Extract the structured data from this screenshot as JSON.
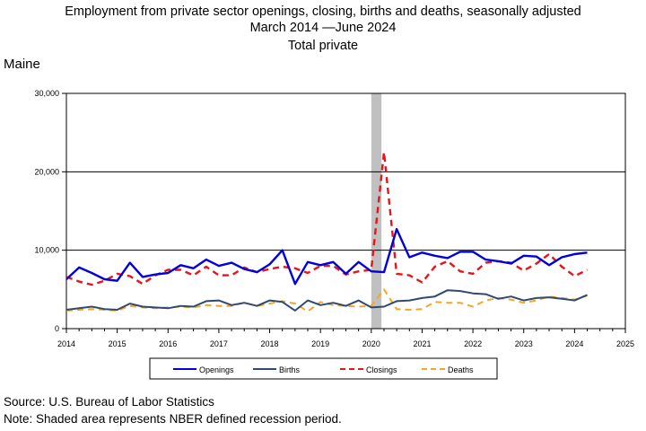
{
  "title": {
    "line1": "Employment from private sector openings, closing, births and deaths, seasonally adjusted",
    "line2": "March 2014 —June 2024",
    "line3": "Total private"
  },
  "state_label": "Maine",
  "footer": {
    "source": "Source: U.S. Bureau of Labor Statistics",
    "note": "Note: Shaded area represents NBER defined recession period."
  },
  "colors": {
    "openings": "#0000dd",
    "births": "#2e4a70",
    "closings": "#e8141b",
    "deaths": "#f5a623",
    "recession": "#c0c0c0"
  },
  "chart_data": {
    "type": "line",
    "ylim": [
      0,
      30000
    ],
    "xlim": [
      2014,
      2025
    ],
    "yticks": [
      {
        "value": 0,
        "label": "0"
      },
      {
        "value": 10000,
        "label": "10,000"
      },
      {
        "value": 20000,
        "label": "20,000"
      },
      {
        "value": 30000,
        "label": "30,000"
      }
    ],
    "xticks": [
      {
        "value": 2014,
        "label": "2014"
      },
      {
        "value": 2015,
        "label": "2015"
      },
      {
        "value": 2016,
        "label": "2016"
      },
      {
        "value": 2017,
        "label": "2017"
      },
      {
        "value": 2018,
        "label": "2018"
      },
      {
        "value": 2019,
        "label": "2019"
      },
      {
        "value": 2020,
        "label": "2020"
      },
      {
        "value": 2021,
        "label": "2021"
      },
      {
        "value": 2022,
        "label": "2022"
      },
      {
        "value": 2023,
        "label": "2023"
      },
      {
        "value": 2024,
        "label": "2024"
      },
      {
        "value": 2025,
        "label": "2025"
      }
    ],
    "horizontal_grid_at": [
      10000,
      20000
    ],
    "recession": {
      "start": 2020.0,
      "end": 2020.2
    },
    "legend_position": "bottom",
    "x": [
      2014.0,
      2014.25,
      2014.5,
      2014.75,
      2015.0,
      2015.25,
      2015.5,
      2015.75,
      2016.0,
      2016.25,
      2016.5,
      2016.75,
      2017.0,
      2017.25,
      2017.5,
      2017.75,
      2018.0,
      2018.25,
      2018.5,
      2018.75,
      2019.0,
      2019.25,
      2019.5,
      2019.75,
      2020.0,
      2020.25,
      2020.5,
      2020.75,
      2021.0,
      2021.25,
      2021.5,
      2021.75,
      2022.0,
      2022.25,
      2022.5,
      2022.75,
      2023.0,
      2023.25,
      2023.5,
      2023.75,
      2024.0,
      2024.25
    ],
    "series": [
      {
        "key": "openings",
        "name": "Openings",
        "style": "solid",
        "values": [
          6300,
          7800,
          7100,
          6300,
          6100,
          8400,
          6600,
          6900,
          7100,
          8100,
          7700,
          8800,
          8000,
          8400,
          7600,
          7200,
          8200,
          10000,
          5700,
          8500,
          8100,
          8500,
          7000,
          8500,
          7300,
          7200,
          12700,
          9100,
          9700,
          9300,
          9000,
          9800,
          9800,
          8800,
          8600,
          8300,
          9300,
          9200,
          8100,
          9100,
          9500,
          9700
        ]
      },
      {
        "key": "births",
        "name": "Births",
        "style": "solid",
        "values": [
          2400,
          2600,
          2800,
          2500,
          2400,
          3200,
          2800,
          2700,
          2600,
          2900,
          2800,
          3500,
          3600,
          3000,
          3300,
          2900,
          3600,
          3400,
          2300,
          3600,
          3000,
          3300,
          2900,
          3600,
          2700,
          2800,
          3500,
          3600,
          3900,
          4100,
          4900,
          4800,
          4500,
          4400,
          3800,
          4100,
          3600,
          3900,
          4000,
          3800,
          3600,
          4300
        ]
      },
      {
        "key": "closings",
        "name": "Closings",
        "style": "dashed",
        "values": [
          6600,
          6000,
          5600,
          6100,
          7000,
          6700,
          5700,
          6800,
          7500,
          7500,
          6800,
          7900,
          6800,
          6800,
          7800,
          7200,
          7600,
          7900,
          7700,
          7100,
          8000,
          8000,
          6900,
          7300,
          7500,
          22500,
          7000,
          6800,
          5900,
          7900,
          8600,
          7300,
          7000,
          8400,
          8600,
          8400,
          7400,
          8300,
          9500,
          7900,
          6700,
          7500
        ]
      },
      {
        "key": "deaths",
        "name": "Deaths",
        "style": "dashed",
        "values": [
          2300,
          2400,
          2500,
          2400,
          2300,
          2900,
          2700,
          2600,
          2700,
          2800,
          2700,
          3000,
          2900,
          2900,
          3300,
          2900,
          3200,
          3500,
          3200,
          2200,
          3400,
          3000,
          2900,
          2800,
          2900,
          5000,
          2500,
          2400,
          2500,
          3400,
          3300,
          3300,
          2800,
          3600,
          3900,
          3700,
          3300,
          3600,
          4100,
          3900,
          3700,
          4200
        ]
      }
    ]
  }
}
